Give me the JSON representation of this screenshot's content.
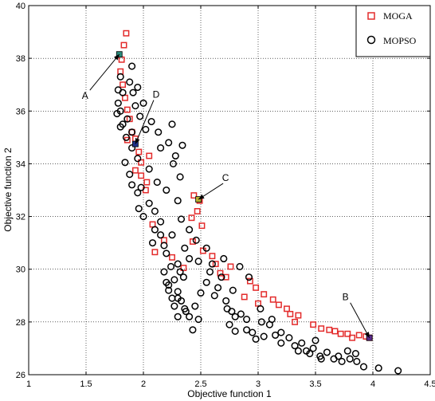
{
  "chart_data": {
    "type": "scatter",
    "title": "",
    "xlabel": "Objective function 1",
    "ylabel": "Objective function 2",
    "xlim": [
      1,
      4.5
    ],
    "ylim": [
      26,
      40
    ],
    "xticks": [
      1,
      1.5,
      2,
      2.5,
      3,
      3.5,
      4,
      4.5
    ],
    "yticks": [
      26,
      28,
      30,
      32,
      34,
      36,
      38,
      40
    ],
    "grid": "dotted",
    "legend_position": "top-right",
    "series": [
      {
        "name": "MOGA",
        "marker": "square",
        "color": "#e32b2b",
        "points": [
          [
            1.85,
            38.95
          ],
          [
            1.83,
            38.5
          ],
          [
            1.81,
            37.95
          ],
          [
            1.8,
            37.5
          ],
          [
            1.82,
            37.0
          ],
          [
            1.84,
            36.5
          ],
          [
            1.86,
            36.05
          ],
          [
            1.88,
            35.7
          ],
          [
            1.9,
            35.2
          ],
          [
            1.93,
            34.95
          ],
          [
            1.86,
            34.9
          ],
          [
            1.96,
            34.45
          ],
          [
            2.05,
            34.3
          ],
          [
            1.98,
            34.05
          ],
          [
            1.93,
            33.75
          ],
          [
            1.98,
            33.55
          ],
          [
            2.03,
            33.3
          ],
          [
            2.02,
            33.0
          ],
          [
            2.44,
            32.8
          ],
          [
            2.49,
            32.6
          ],
          [
            2.47,
            32.2
          ],
          [
            2.42,
            31.95
          ],
          [
            2.08,
            31.7
          ],
          [
            2.51,
            31.65
          ],
          [
            2.18,
            31.1
          ],
          [
            2.43,
            31.05
          ],
          [
            2.1,
            30.65
          ],
          [
            2.52,
            30.7
          ],
          [
            2.6,
            30.5
          ],
          [
            2.63,
            30.2
          ],
          [
            2.35,
            30.05
          ],
          [
            2.76,
            30.1
          ],
          [
            2.67,
            29.85
          ],
          [
            2.72,
            29.7
          ],
          [
            2.93,
            29.55
          ],
          [
            2.98,
            29.3
          ],
          [
            3.05,
            29.05
          ],
          [
            2.88,
            28.95
          ],
          [
            3.0,
            28.7
          ],
          [
            3.13,
            28.85
          ],
          [
            3.18,
            28.65
          ],
          [
            3.25,
            28.5
          ],
          [
            3.28,
            28.3
          ],
          [
            3.35,
            28.25
          ],
          [
            3.32,
            28.0
          ],
          [
            3.48,
            27.9
          ],
          [
            3.55,
            27.75
          ],
          [
            3.62,
            27.7
          ],
          [
            3.67,
            27.65
          ],
          [
            3.72,
            27.55
          ],
          [
            3.78,
            27.55
          ],
          [
            3.82,
            27.4
          ],
          [
            3.88,
            27.5
          ],
          [
            3.94,
            27.45
          ],
          [
            3.97,
            27.4
          ],
          [
            2.25,
            30.45
          ]
        ]
      },
      {
        "name": "MOPSO",
        "marker": "circle",
        "color": "#000000",
        "points": [
          [
            1.9,
            37.7
          ],
          [
            1.8,
            37.3
          ],
          [
            1.78,
            36.8
          ],
          [
            1.78,
            36.3
          ],
          [
            1.77,
            35.9
          ],
          [
            1.8,
            35.4
          ],
          [
            1.88,
            37.1
          ],
          [
            1.91,
            36.7
          ],
          [
            1.95,
            36.9
          ],
          [
            1.93,
            36.2
          ],
          [
            1.97,
            35.8
          ],
          [
            2.02,
            35.3
          ],
          [
            2.07,
            35.6
          ],
          [
            2.13,
            35.2
          ],
          [
            1.85,
            35.0
          ],
          [
            1.9,
            34.6
          ],
          [
            1.84,
            34.05
          ],
          [
            1.88,
            33.6
          ],
          [
            1.9,
            33.2
          ],
          [
            1.95,
            32.9
          ],
          [
            1.96,
            32.3
          ],
          [
            2.0,
            32.0
          ],
          [
            2.05,
            32.5
          ],
          [
            2.1,
            32.2
          ],
          [
            2.1,
            31.5
          ],
          [
            2.15,
            31.3
          ],
          [
            2.18,
            30.9
          ],
          [
            2.2,
            30.6
          ],
          [
            2.18,
            29.9
          ],
          [
            2.2,
            29.5
          ],
          [
            2.22,
            29.2
          ],
          [
            2.27,
            29.6
          ],
          [
            2.3,
            29.15
          ],
          [
            2.25,
            28.9
          ],
          [
            2.27,
            28.6
          ],
          [
            2.3,
            28.2
          ],
          [
            2.33,
            28.8
          ],
          [
            2.36,
            28.5
          ],
          [
            2.4,
            28.2
          ],
          [
            2.43,
            27.7
          ],
          [
            2.48,
            28.1
          ],
          [
            2.5,
            29.1
          ],
          [
            2.55,
            29.5
          ],
          [
            2.58,
            29.9
          ],
          [
            2.65,
            29.3
          ],
          [
            2.72,
            28.8
          ],
          [
            2.77,
            28.4
          ],
          [
            2.8,
            28.2
          ],
          [
            2.85,
            28.3
          ],
          [
            2.75,
            27.9
          ],
          [
            2.8,
            27.65
          ],
          [
            2.9,
            27.7
          ],
          [
            2.95,
            27.6
          ],
          [
            2.98,
            27.35
          ],
          [
            3.03,
            28.0
          ],
          [
            3.1,
            27.9
          ],
          [
            3.15,
            27.5
          ],
          [
            3.2,
            27.6
          ],
          [
            3.27,
            27.4
          ],
          [
            3.32,
            27.1
          ],
          [
            3.38,
            27.2
          ],
          [
            3.42,
            26.9
          ],
          [
            3.48,
            27.0
          ],
          [
            3.54,
            26.7
          ],
          [
            3.6,
            26.85
          ],
          [
            3.66,
            26.6
          ],
          [
            3.73,
            26.5
          ],
          [
            3.8,
            26.6
          ],
          [
            3.86,
            26.5
          ],
          [
            3.92,
            26.3
          ],
          [
            4.05,
            26.25
          ],
          [
            4.22,
            26.15
          ],
          [
            3.45,
            26.8
          ],
          [
            3.7,
            26.7
          ],
          [
            3.78,
            26.9
          ],
          [
            2.22,
            34.8
          ],
          [
            2.28,
            34.3
          ],
          [
            2.32,
            33.5
          ],
          [
            2.3,
            32.6
          ],
          [
            2.33,
            31.9
          ],
          [
            2.25,
            31.3
          ],
          [
            2.4,
            31.5
          ],
          [
            2.46,
            31.1
          ],
          [
            2.55,
            30.8
          ],
          [
            2.6,
            30.2
          ],
          [
            2.68,
            29.7
          ],
          [
            2.7,
            30.4
          ],
          [
            2.84,
            30.1
          ],
          [
            2.92,
            29.7
          ],
          [
            2.4,
            30.4
          ],
          [
            2.35,
            29.7
          ],
          [
            2.3,
            30.2
          ],
          [
            2.15,
            31.8
          ],
          [
            2.2,
            33.0
          ],
          [
            2.05,
            33.8
          ],
          [
            2.25,
            35.5
          ],
          [
            2.26,
            34.0
          ],
          [
            2.15,
            34.6
          ],
          [
            2.34,
            34.7
          ],
          [
            1.95,
            34.2
          ],
          [
            1.86,
            35.7
          ],
          [
            1.8,
            36.0
          ],
          [
            1.82,
            35.5
          ],
          [
            1.9,
            35.2
          ],
          [
            2.0,
            36.3
          ],
          [
            1.82,
            36.7
          ],
          [
            2.12,
            33.3
          ],
          [
            1.98,
            33.1
          ],
          [
            2.08,
            31.0
          ],
          [
            2.24,
            30.1
          ],
          [
            2.32,
            29.9
          ],
          [
            2.36,
            30.8
          ],
          [
            2.48,
            30.3
          ],
          [
            2.22,
            29.4
          ],
          [
            2.3,
            28.9
          ],
          [
            2.37,
            28.4
          ],
          [
            2.45,
            28.6
          ],
          [
            2.62,
            29.0
          ],
          [
            2.73,
            28.5
          ],
          [
            2.9,
            28.1
          ],
          [
            3.05,
            27.45
          ],
          [
            3.2,
            27.2
          ],
          [
            3.35,
            26.9
          ],
          [
            3.5,
            27.3
          ],
          [
            3.55,
            26.6
          ],
          [
            3.85,
            26.8
          ],
          [
            2.78,
            29.2
          ],
          [
            3.02,
            28.5
          ],
          [
            3.12,
            28.1
          ]
        ]
      }
    ],
    "annotations": [
      {
        "label": "A",
        "x": 1.79,
        "y": 38.15,
        "highlight_color": "#2a8a7a"
      },
      {
        "label": "B",
        "x": 3.97,
        "y": 27.4,
        "highlight_color": "#5a2a8a"
      },
      {
        "label": "C",
        "x": 2.48,
        "y": 32.65,
        "highlight_color": "#b8b030"
      },
      {
        "label": "D",
        "x": 1.93,
        "y": 34.75,
        "highlight_color": "#20308a"
      }
    ]
  }
}
